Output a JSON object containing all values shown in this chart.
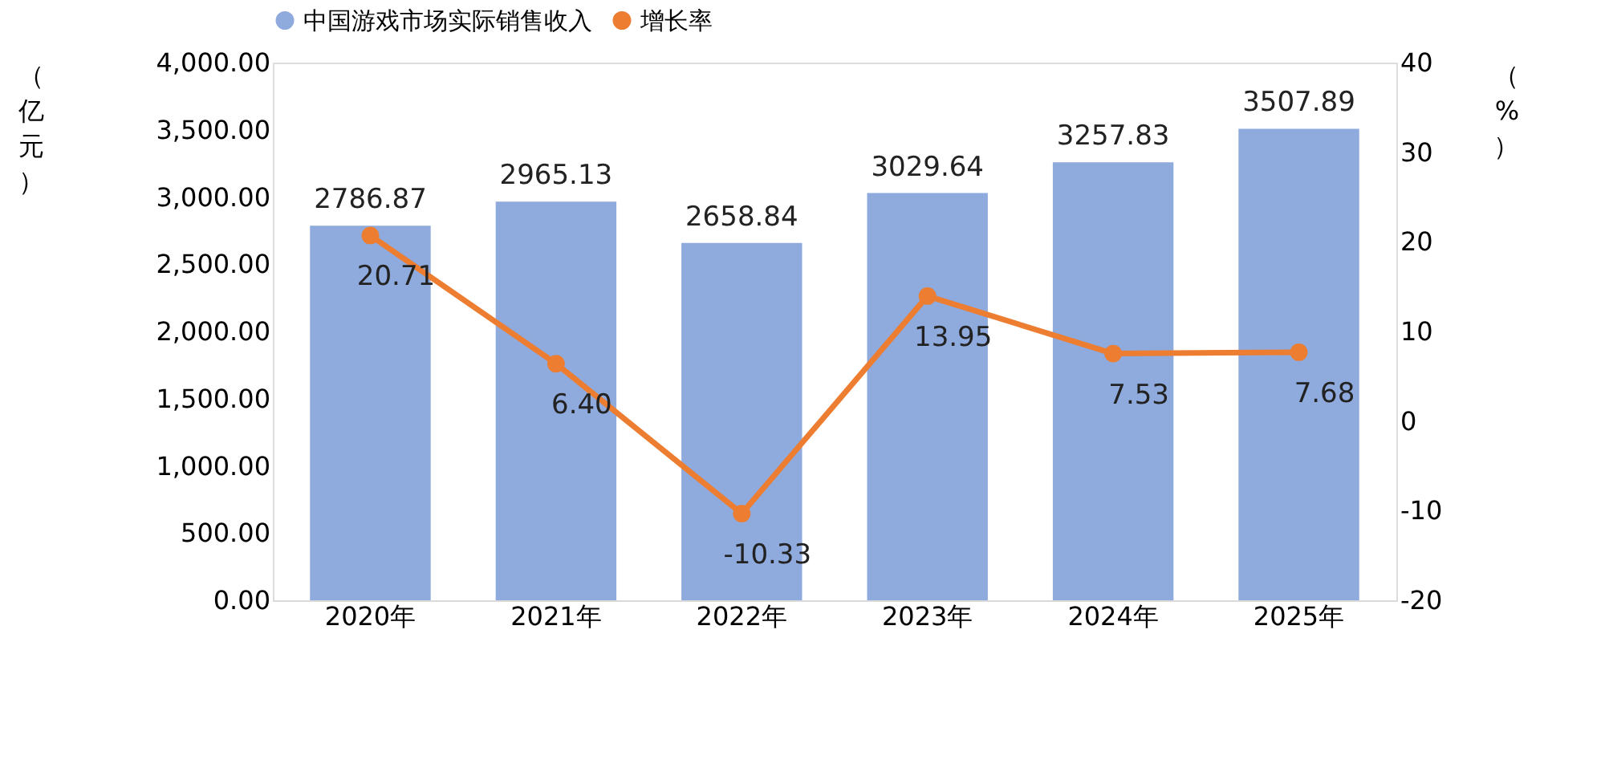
{
  "chart_data": {
    "type": "bar",
    "categories": [
      "2020年",
      "2021年",
      "2022年",
      "2023年",
      "2024年",
      "2025年"
    ],
    "series": [
      {
        "name": "中国游戏市场实际销售收入",
        "color": "#8faadc",
        "values": [
          2786.87,
          2965.13,
          2658.84,
          3029.64,
          3257.83,
          3507.89
        ],
        "value_labels": [
          "2786.87",
          "2965.13",
          "2658.84",
          "3029.64",
          "3257.83",
          "3507.89"
        ]
      },
      {
        "name": "增长率",
        "type": "line",
        "axis": "y2",
        "color": "#ed7d31",
        "marker": "circle",
        "values": [
          20.71,
          6.4,
          -10.33,
          13.95,
          7.53,
          7.68
        ],
        "value_labels": [
          "20.71",
          "6.40",
          "-10.33",
          "13.95",
          "7.53",
          "7.68"
        ]
      }
    ],
    "ylabel": "（亿元）",
    "y2label": "（%）",
    "ylim": [
      0,
      4000
    ],
    "yticks": [
      {
        "value": 0,
        "label": "0.00"
      },
      {
        "value": 500,
        "label": "500.00"
      },
      {
        "value": 1000,
        "label": "1,000.00"
      },
      {
        "value": 1500,
        "label": "1,500.00"
      },
      {
        "value": 2000,
        "label": "2,000.00"
      },
      {
        "value": 2500,
        "label": "2,500.00"
      },
      {
        "value": 3000,
        "label": "3,000.00"
      },
      {
        "value": 3500,
        "label": "3,500.00"
      },
      {
        "value": 4000,
        "label": "4,000.00"
      }
    ],
    "y2lim": [
      -20,
      40
    ],
    "y2ticks": [
      -20,
      -10,
      0,
      10,
      20,
      30,
      40
    ],
    "legend": "top",
    "grid": false
  }
}
